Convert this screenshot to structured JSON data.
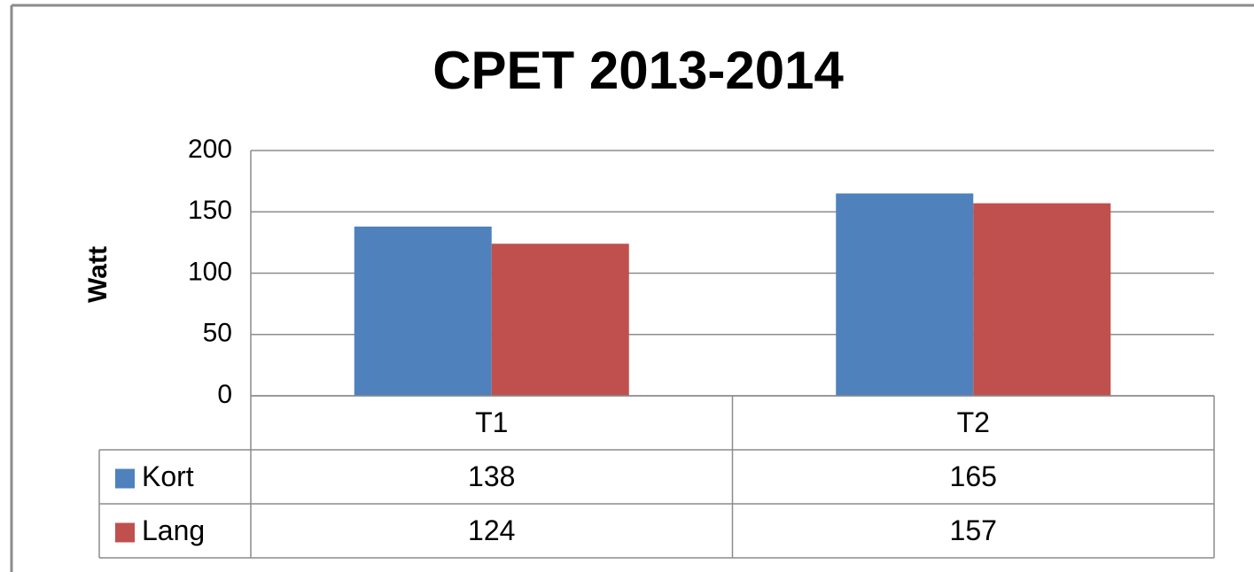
{
  "chart_data": {
    "type": "bar",
    "title": "CPET 2013-2014",
    "y_label": "Watt",
    "categories": [
      "T1",
      "T2"
    ],
    "series": [
      {
        "name": "Kort",
        "color": "#4f81bd",
        "values": [
          138,
          165
        ]
      },
      {
        "name": "Lang",
        "color": "#c0504d",
        "values": [
          124,
          157
        ]
      }
    ],
    "ylim": [
      0,
      200
    ],
    "yticks": [
      0,
      50,
      100,
      150,
      200
    ],
    "grid": true,
    "data_table": true
  }
}
